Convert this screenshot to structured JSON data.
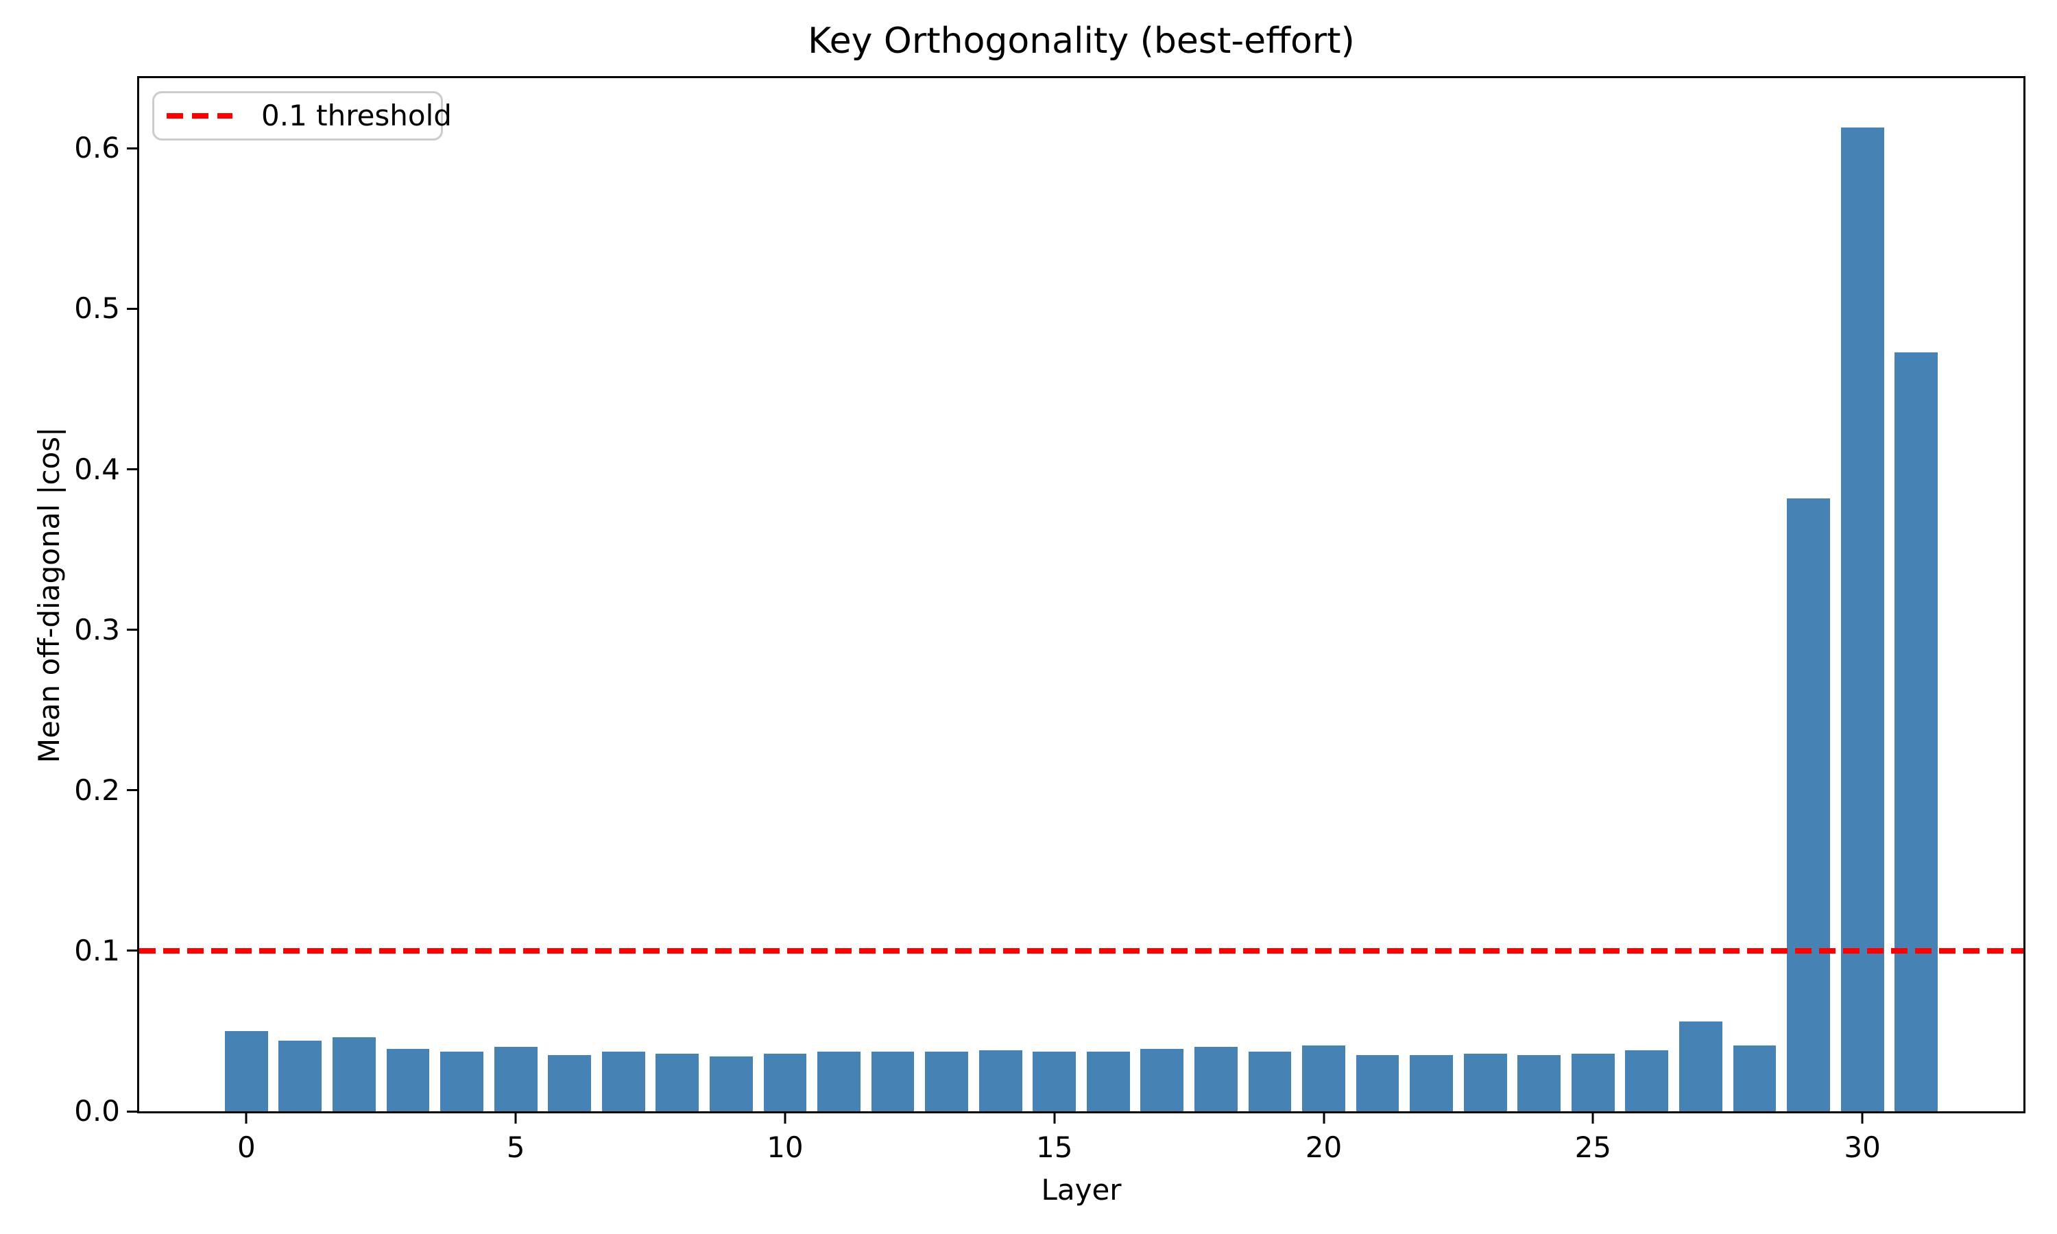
{
  "chart_data": {
    "type": "bar",
    "title": "Key Orthogonality (best-effort)",
    "xlabel": "Layer",
    "ylabel": "Mean off-diagonal |cos|",
    "categories": [
      0,
      1,
      2,
      3,
      4,
      5,
      6,
      7,
      8,
      9,
      10,
      11,
      12,
      13,
      14,
      15,
      16,
      17,
      18,
      19,
      20,
      21,
      22,
      23,
      24,
      25,
      26,
      27,
      28,
      29,
      30,
      31
    ],
    "values": [
      0.05,
      0.044,
      0.046,
      0.039,
      0.037,
      0.04,
      0.035,
      0.037,
      0.036,
      0.034,
      0.036,
      0.037,
      0.037,
      0.037,
      0.038,
      0.037,
      0.037,
      0.039,
      0.04,
      0.037,
      0.041,
      0.035,
      0.035,
      0.036,
      0.035,
      0.036,
      0.038,
      0.056,
      0.041,
      0.382,
      0.613,
      0.473
    ],
    "bar_color": "#4682b4",
    "bar_width": 0.8,
    "threshold": {
      "value": 0.1,
      "label": "0.1 threshold",
      "color": "#ff0000",
      "style": "dashed"
    },
    "legend_position": "upper left",
    "grid": false,
    "xlim": [
      -1.99,
      32.99
    ],
    "ylim": [
      0,
      0.6437
    ],
    "xticks": {
      "values": [
        0,
        5,
        10,
        15,
        20,
        25,
        30
      ],
      "labels": [
        "0",
        "5",
        "10",
        "15",
        "20",
        "25",
        "30"
      ]
    },
    "yticks": {
      "values": [
        0.0,
        0.1,
        0.2,
        0.3,
        0.4,
        0.5,
        0.6
      ],
      "labels": [
        "0.0",
        "0.1",
        "0.2",
        "0.3",
        "0.4",
        "0.5",
        "0.6"
      ]
    }
  }
}
